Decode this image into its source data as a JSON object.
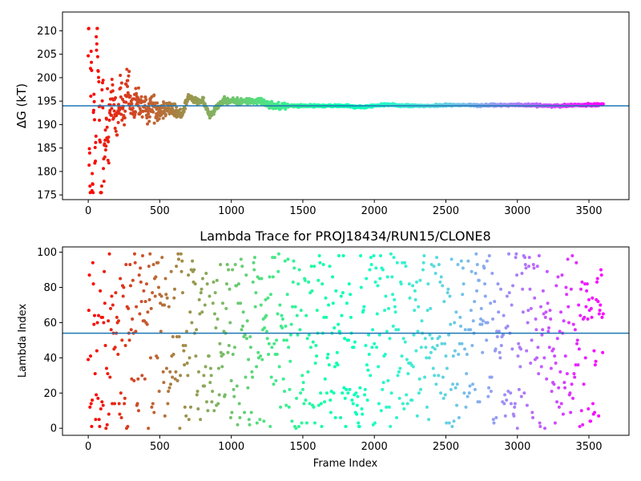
{
  "chart_data": [
    {
      "type": "scatter",
      "title": "",
      "xlabel": "",
      "ylabel": "ΔG (kT)",
      "xlim": [
        -180,
        3780
      ],
      "ylim": [
        174,
        214
      ],
      "xticks": [
        0,
        500,
        1000,
        1500,
        2000,
        2500,
        3000,
        3500
      ],
      "yticks": [
        175,
        180,
        185,
        190,
        195,
        200,
        205,
        210
      ],
      "hline": 194,
      "hline_color": "#1f77b4",
      "colormap": "rainbow (red to violet by frame index)",
      "series": [
        {
          "x": [
            0,
            10,
            20,
            30,
            40,
            50,
            60,
            70,
            80,
            90,
            100,
            110,
            120,
            130,
            140,
            150,
            175,
            200,
            225,
            250,
            275,
            300,
            350,
            400,
            450,
            500,
            550,
            600,
            650,
            700,
            750,
            800,
            850,
            900,
            950,
            1000,
            1100,
            1200,
            1300,
            1400,
            1500,
            1600,
            1700,
            1800,
            1900,
            2000,
            2100,
            2200,
            2300,
            2400,
            2500,
            2750,
            3000,
            3250,
            3600
          ],
          "values": [
            210,
            180,
            200,
            176,
            190,
            184,
            208,
            201,
            193,
            178,
            196,
            180,
            186,
            192,
            187,
            193,
            195,
            190,
            196,
            192,
            198,
            193,
            195,
            193,
            194,
            193,
            194,
            193,
            192,
            196,
            195,
            195,
            192,
            194,
            195,
            195,
            195,
            195,
            194,
            194,
            194,
            194,
            194,
            194,
            193.7,
            194,
            194.3,
            194,
            194,
            194,
            194.2,
            194.1,
            194.2,
            194,
            194.3
          ]
        }
      ]
    },
    {
      "type": "scatter",
      "title": "Lambda Trace for PROJ18434/RUN15/CLONE8",
      "xlabel": "Frame Index",
      "ylabel": "Lambda Index",
      "xlim": [
        -180,
        3780
      ],
      "ylim": [
        -4,
        103
      ],
      "xticks": [
        0,
        500,
        1000,
        1500,
        2000,
        2500,
        3000,
        3500
      ],
      "yticks": [
        0,
        20,
        40,
        60,
        80,
        100
      ],
      "hline": 54,
      "hline_color": "#1f77b4",
      "colormap": "rainbow (red to violet by frame index)",
      "sampling": "one point every 4 frames, lambda index 0-99 distributed uniformly",
      "series": [
        {
          "x": [
            0,
            3600
          ],
          "values": [
            0,
            99
          ]
        }
      ]
    }
  ]
}
